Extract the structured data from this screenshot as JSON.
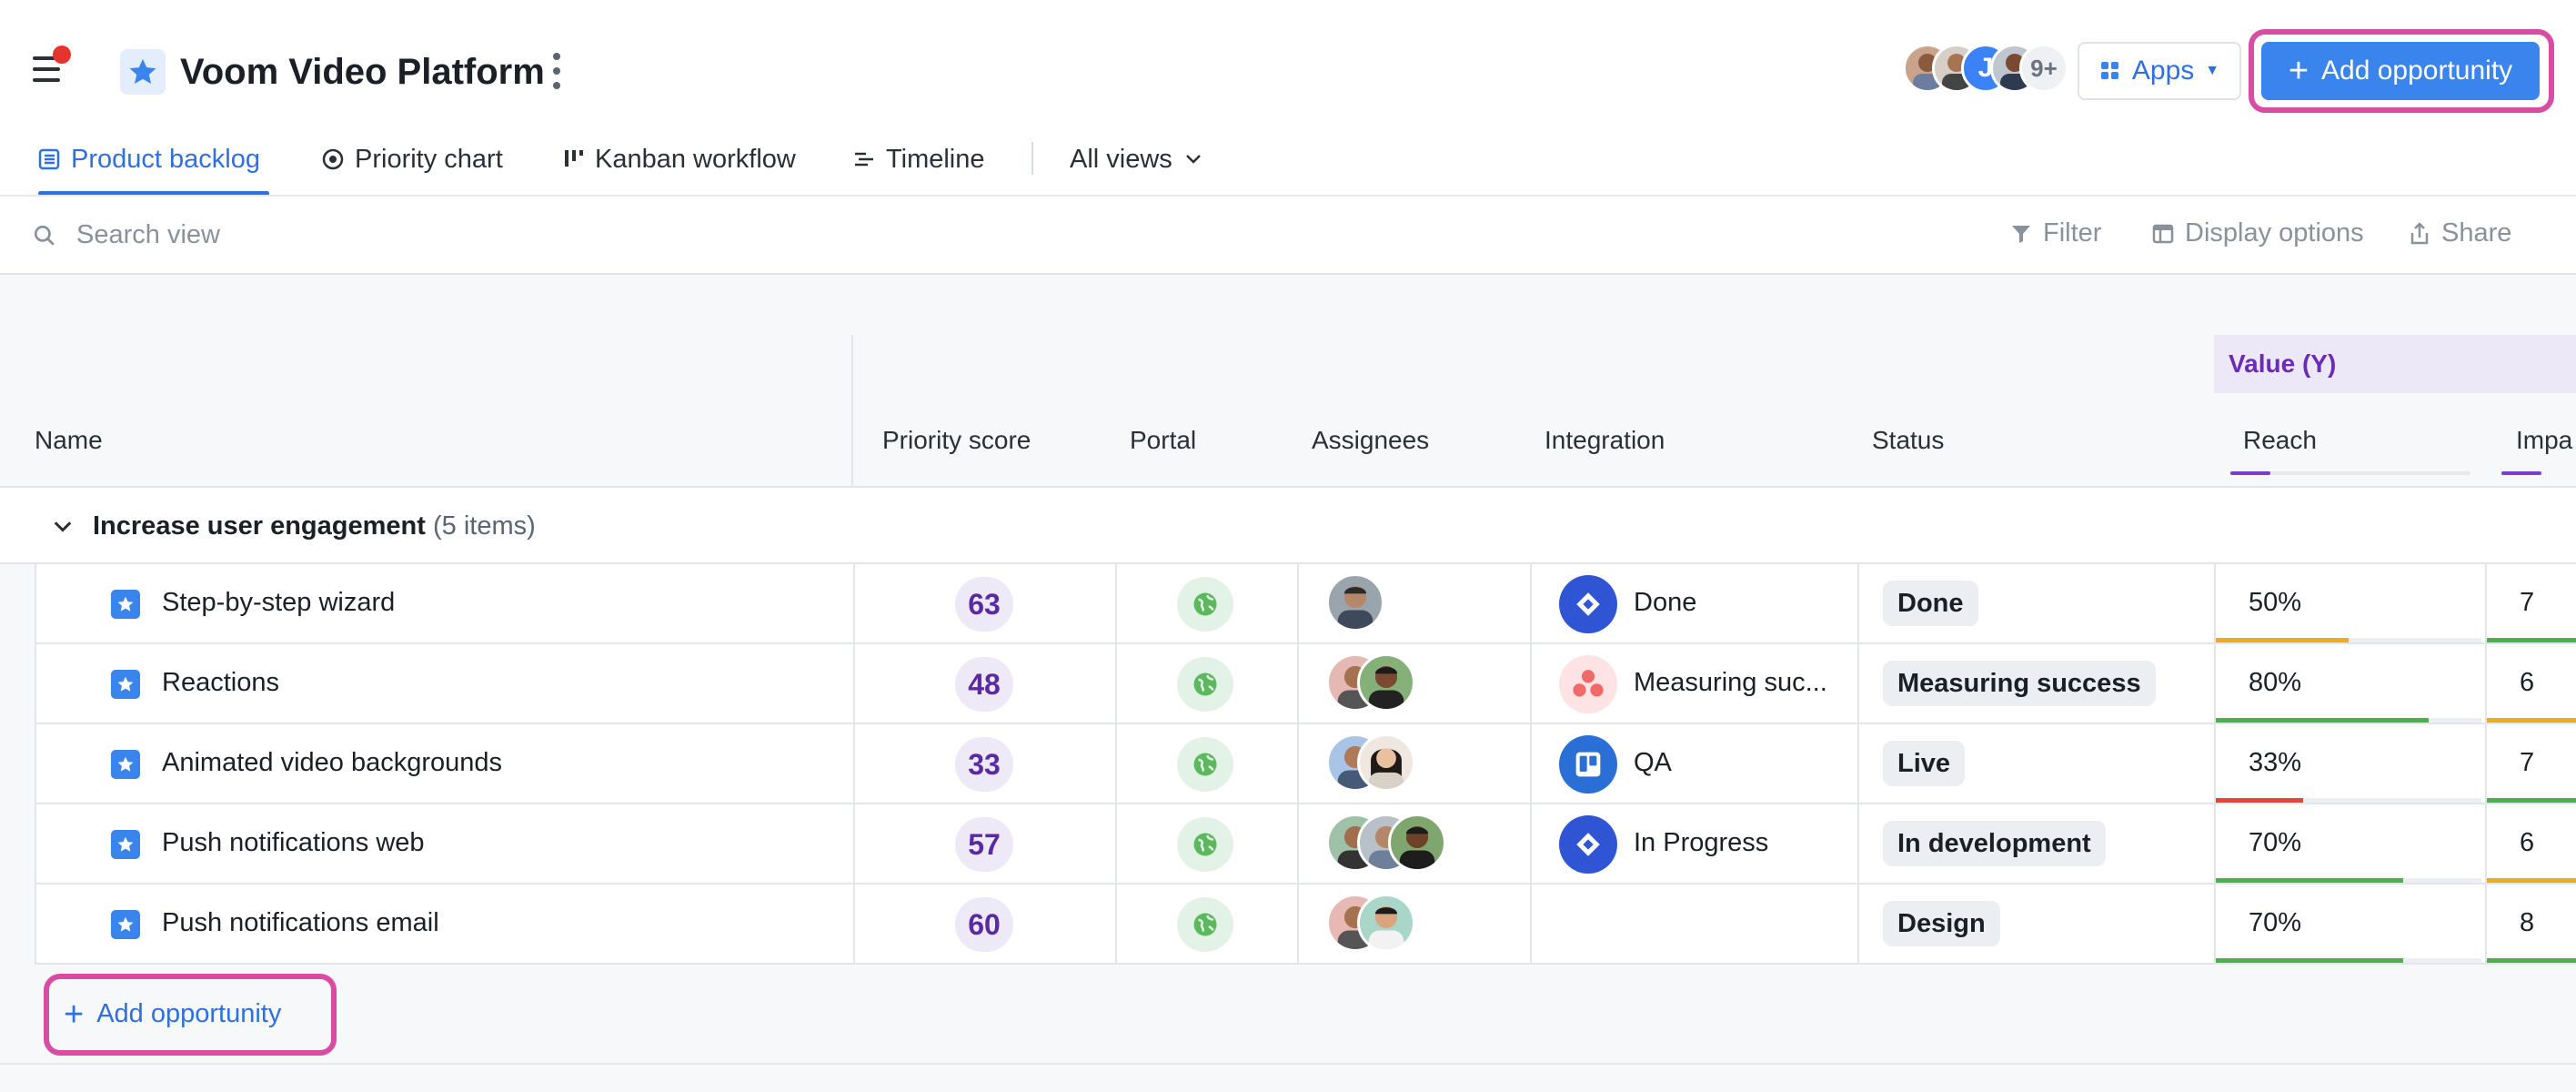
{
  "header": {
    "project_title": "Voom Video Platform",
    "avatars_more": "9+",
    "avatar_initial": "J",
    "apps_label": "Apps",
    "add_opportunity_label": "Add opportunity"
  },
  "tabs": [
    {
      "label": "Product backlog",
      "icon": "list-icon",
      "active": true
    },
    {
      "label": "Priority chart",
      "icon": "target-icon"
    },
    {
      "label": "Kanban workflow",
      "icon": "kanban-icon"
    },
    {
      "label": "Timeline",
      "icon": "timeline-icon"
    },
    {
      "label": "All views",
      "icon": "chevron-down-icon"
    }
  ],
  "toolbar": {
    "search_placeholder": "Search view",
    "filter": "Filter",
    "display_options": "Display options",
    "share": "Share"
  },
  "table": {
    "group_header": "Value (Y)",
    "columns": {
      "name": "Name",
      "priority": "Priority score",
      "portal": "Portal",
      "assignees": "Assignees",
      "integration": "Integration",
      "status": "Status",
      "reach": "Reach",
      "impact": "Impa"
    },
    "group": {
      "title": "Increase user engagement",
      "count": "(5 items)"
    },
    "rows": [
      {
        "name": "Step-by-step wizard",
        "score": "63",
        "integration": "Done",
        "integration_icon": "jira-icon",
        "status": "Done",
        "reach": "50%",
        "impact": "7"
      },
      {
        "name": "Reactions",
        "score": "48",
        "integration": "Measuring suc...",
        "integration_icon": "asana-icon",
        "status": "Measuring success",
        "reach": "80%",
        "impact": "6"
      },
      {
        "name": "Animated video backgrounds",
        "score": "33",
        "integration": "QA",
        "integration_icon": "trello-icon",
        "status": "Live",
        "reach": "33%",
        "impact": "7"
      },
      {
        "name": "Push notifications web",
        "score": "57",
        "integration": "In Progress",
        "integration_icon": "jira-icon",
        "status": "In development",
        "reach": "70%",
        "impact": "6"
      },
      {
        "name": "Push notifications email",
        "score": "60",
        "integration": "",
        "integration_icon": "",
        "status": "Design",
        "reach": "70%",
        "impact": "8"
      }
    ],
    "add_opportunity_label": "Add opportunity"
  },
  "colors": {
    "accent": "#3a84ee",
    "highlight": "#d94ca3",
    "value_purple": "#6b2bb8",
    "bar_green": "#4caf50",
    "bar_orange": "#f5a623",
    "bar_red": "#e5443a"
  }
}
